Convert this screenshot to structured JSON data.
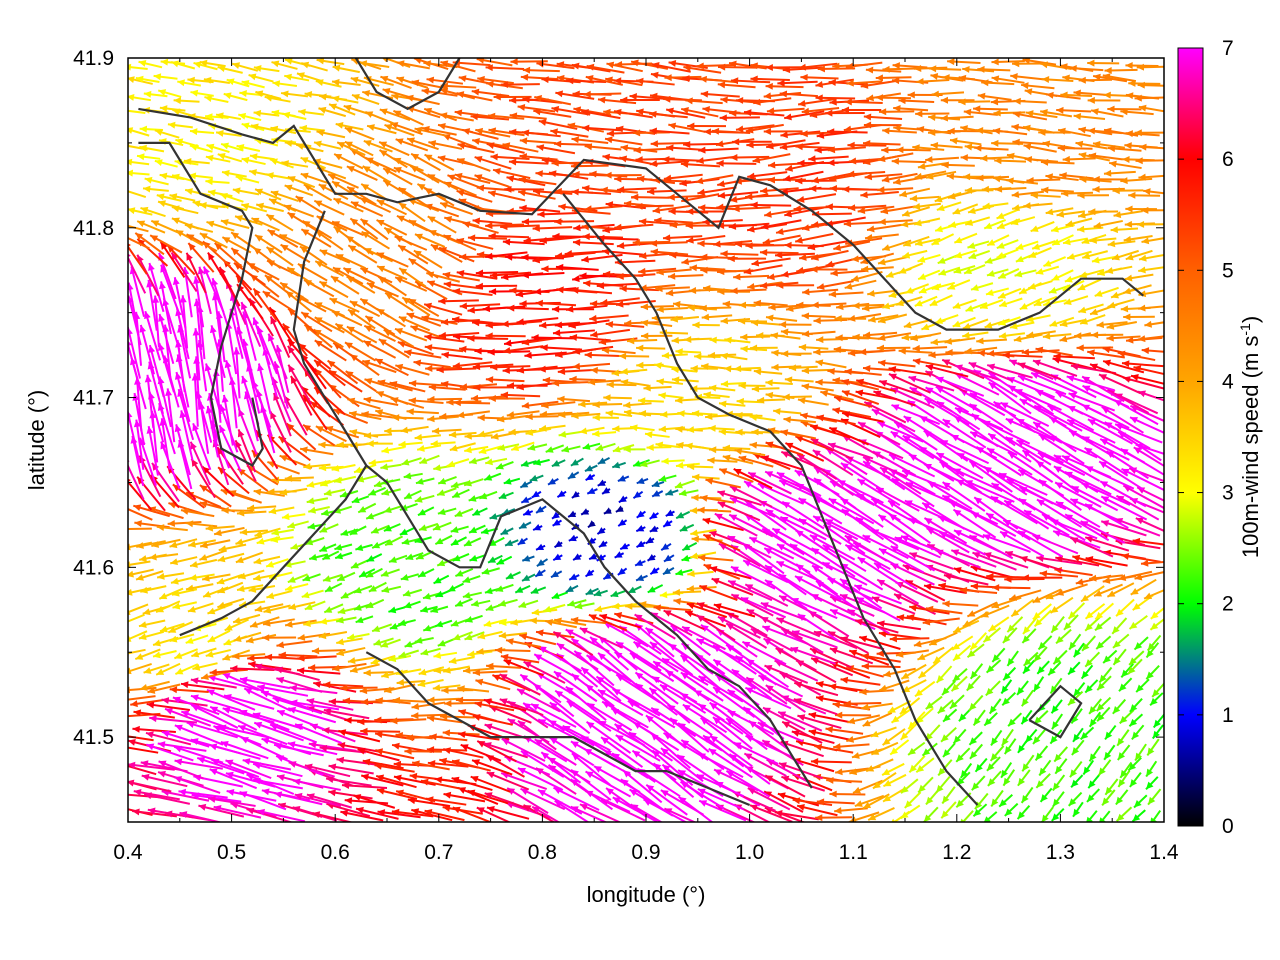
{
  "chart_data": {
    "type": "vector-field",
    "xlabel": "longitude (°)",
    "ylabel": "latitude (°)",
    "colorbar_label": "100m-wind speed (m s",
    "colorbar_label_sup": "-1",
    "colorbar_label_end": ")",
    "xlim": [
      0.4,
      1.4
    ],
    "ylim": [
      41.45,
      41.9
    ],
    "xticks": [
      0.4,
      0.5,
      0.6,
      0.7,
      0.8,
      0.9,
      1.0,
      1.1,
      1.2,
      1.3,
      1.4
    ],
    "xtick_labels": [
      "0.4",
      "0.5",
      "0.6",
      "0.7",
      "0.8",
      "0.9",
      "1.0",
      "1.1",
      "1.2",
      "1.3",
      "1.4"
    ],
    "yticks": [
      41.5,
      41.6,
      41.7,
      41.8,
      41.9
    ],
    "ytick_labels": [
      "41.5",
      "41.6",
      "41.7",
      "41.8",
      "41.9"
    ],
    "colorbar_range": [
      0,
      7
    ],
    "colorbar_ticks": [
      0,
      1,
      2,
      3,
      4,
      5,
      6,
      7
    ],
    "colorbar_tick_labels": [
      "0",
      "1",
      "2",
      "3",
      "4",
      "5",
      "6",
      "7"
    ],
    "colormap": [
      {
        "v": 0,
        "color": "#000000"
      },
      {
        "v": 1,
        "color": "#0000ff"
      },
      {
        "v": 1.5,
        "color": "#008080"
      },
      {
        "v": 2,
        "color": "#00ff00"
      },
      {
        "v": 3,
        "color": "#ffff00"
      },
      {
        "v": 4,
        "color": "#ffa500"
      },
      {
        "v": 5,
        "color": "#ff6000"
      },
      {
        "v": 6,
        "color": "#ff0000"
      },
      {
        "v": 7,
        "color": "#ff00ff"
      }
    ],
    "grid": false,
    "regions": [
      {
        "lon": 0.45,
        "lat": 41.72,
        "speed": 7.5,
        "dir_deg": 100
      },
      {
        "lon": 0.5,
        "lat": 41.52,
        "speed": 7.5,
        "dir_deg": 160
      },
      {
        "lon": 0.9,
        "lat": 41.53,
        "speed": 7.5,
        "dir_deg": 145
      },
      {
        "lon": 1.25,
        "lat": 41.67,
        "speed": 7.5,
        "dir_deg": 150
      },
      {
        "lon": 1.05,
        "lat": 41.62,
        "speed": 7.2,
        "dir_deg": 150
      },
      {
        "lon": 0.8,
        "lat": 41.75,
        "speed": 5.8,
        "dir_deg": 182
      },
      {
        "lon": 1.05,
        "lat": 41.82,
        "speed": 5.5,
        "dir_deg": 185
      },
      {
        "lon": 0.9,
        "lat": 41.89,
        "speed": 5.3,
        "dir_deg": 175
      },
      {
        "lon": 0.62,
        "lat": 41.78,
        "speed": 4.5,
        "dir_deg": 150
      },
      {
        "lon": 0.87,
        "lat": 41.62,
        "speed": 0.8,
        "dir_deg": 210
      },
      {
        "lon": 0.66,
        "lat": 41.6,
        "speed": 2.2,
        "dir_deg": 200
      },
      {
        "lon": 0.95,
        "lat": 41.7,
        "speed": 3.5,
        "dir_deg": 178
      },
      {
        "lon": 0.47,
        "lat": 41.55,
        "speed": 3.2,
        "dir_deg": 200
      },
      {
        "lon": 1.3,
        "lat": 41.51,
        "speed": 2.2,
        "dir_deg": 230
      },
      {
        "lon": 0.47,
        "lat": 41.85,
        "speed": 3.2,
        "dir_deg": 170
      },
      {
        "lon": 1.28,
        "lat": 41.85,
        "speed": 4.5,
        "dir_deg": 175
      },
      {
        "lon": 1.24,
        "lat": 41.78,
        "speed": 3.0,
        "dir_deg": 200
      }
    ],
    "boundaries": [
      [
        [
          0.41,
          41.87
        ],
        [
          0.46,
          41.865
        ],
        [
          0.51,
          41.855
        ],
        [
          0.54,
          41.85
        ],
        [
          0.56,
          41.86
        ],
        [
          0.58,
          41.84
        ],
        [
          0.6,
          41.82
        ],
        [
          0.63,
          41.82
        ],
        [
          0.66,
          41.815
        ],
        [
          0.7,
          41.82
        ],
        [
          0.74,
          41.81
        ],
        [
          0.79,
          41.808
        ],
        [
          0.84,
          41.84
        ],
        [
          0.9,
          41.835
        ],
        [
          0.94,
          41.815
        ],
        [
          0.97,
          41.8
        ],
        [
          0.99,
          41.83
        ],
        [
          1.02,
          41.825
        ],
        [
          1.06,
          41.81
        ],
        [
          1.1,
          41.79
        ],
        [
          1.13,
          41.77
        ],
        [
          1.16,
          41.75
        ],
        [
          1.19,
          41.74
        ],
        [
          1.24,
          41.74
        ],
        [
          1.28,
          41.75
        ],
        [
          1.32,
          41.77
        ],
        [
          1.36,
          41.77
        ],
        [
          1.38,
          41.76
        ]
      ],
      [
        [
          0.41,
          41.85
        ],
        [
          0.44,
          41.85
        ],
        [
          0.47,
          41.82
        ],
        [
          0.51,
          41.81
        ],
        [
          0.52,
          41.8
        ],
        [
          0.51,
          41.77
        ],
        [
          0.49,
          41.73
        ],
        [
          0.48,
          41.7
        ],
        [
          0.49,
          41.67
        ],
        [
          0.52,
          41.66
        ],
        [
          0.53,
          41.67
        ],
        [
          0.52,
          41.7
        ]
      ],
      [
        [
          0.59,
          41.81
        ],
        [
          0.57,
          41.78
        ],
        [
          0.56,
          41.74
        ],
        [
          0.57,
          41.72
        ],
        [
          0.59,
          41.7
        ],
        [
          0.61,
          41.68
        ],
        [
          0.63,
          41.66
        ],
        [
          0.65,
          41.65
        ],
        [
          0.67,
          41.63
        ],
        [
          0.69,
          41.61
        ],
        [
          0.72,
          41.6
        ],
        [
          0.74,
          41.6
        ],
        [
          0.76,
          41.63
        ],
        [
          0.8,
          41.64
        ],
        [
          0.84,
          41.62
        ],
        [
          0.86,
          41.6
        ],
        [
          0.89,
          41.58
        ],
        [
          0.93,
          41.56
        ],
        [
          0.96,
          41.54
        ],
        [
          0.99,
          41.53
        ],
        [
          1.02,
          41.51
        ],
        [
          1.04,
          41.49
        ],
        [
          1.06,
          41.47
        ]
      ],
      [
        [
          0.45,
          41.56
        ],
        [
          0.49,
          41.57
        ],
        [
          0.52,
          41.58
        ],
        [
          0.55,
          41.6
        ],
        [
          0.58,
          41.62
        ],
        [
          0.61,
          41.64
        ],
        [
          0.63,
          41.66
        ]
      ],
      [
        [
          0.62,
          41.9
        ],
        [
          0.64,
          41.88
        ],
        [
          0.67,
          41.87
        ],
        [
          0.7,
          41.88
        ],
        [
          0.72,
          41.9
        ]
      ],
      [
        [
          0.82,
          41.82
        ],
        [
          0.86,
          41.79
        ],
        [
          0.89,
          41.77
        ],
        [
          0.91,
          41.75
        ],
        [
          0.93,
          41.72
        ],
        [
          0.95,
          41.7
        ],
        [
          0.98,
          41.69
        ],
        [
          1.02,
          41.68
        ],
        [
          1.05,
          41.66
        ],
        [
          1.07,
          41.63
        ],
        [
          1.09,
          41.6
        ],
        [
          1.11,
          41.57
        ],
        [
          1.14,
          41.54
        ],
        [
          1.16,
          41.51
        ],
        [
          1.19,
          41.48
        ],
        [
          1.22,
          41.46
        ]
      ],
      [
        [
          0.63,
          41.55
        ],
        [
          0.66,
          41.54
        ],
        [
          0.69,
          41.52
        ],
        [
          0.72,
          41.51
        ],
        [
          0.75,
          41.5
        ],
        [
          0.79,
          41.5
        ],
        [
          0.83,
          41.5
        ],
        [
          0.86,
          41.49
        ],
        [
          0.89,
          41.48
        ],
        [
          0.92,
          41.48
        ],
        [
          0.96,
          41.47
        ],
        [
          1.0,
          41.46
        ]
      ],
      [
        [
          1.27,
          41.51
        ],
        [
          1.3,
          41.5
        ],
        [
          1.32,
          41.52
        ],
        [
          1.3,
          41.53
        ],
        [
          1.27,
          41.51
        ]
      ]
    ]
  }
}
